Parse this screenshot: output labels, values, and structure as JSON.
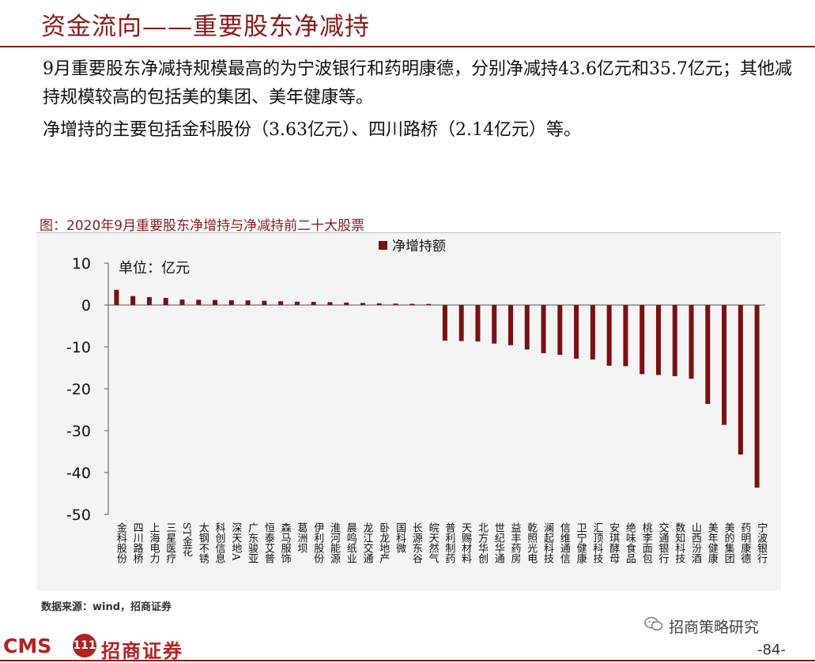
{
  "header": {
    "title": "资金流向——重要股东净减持"
  },
  "summary": {
    "paragraph1": "9月重要股东净减持规模最高的为宁波银行和药明康德，分别净减持43.6亿元和35.7亿元；其他减持规模较高的包括美的集团、美年健康等。",
    "paragraph2": "净增持的主要包括金科股份（3.63亿元）、四川路桥（2.14亿元）等。"
  },
  "figure": {
    "caption": "图：2020年9月重要股东净增持与净减持前二十大股票",
    "source": "数据来源：wind，招商证券"
  },
  "chart_data": {
    "type": "bar",
    "unit_label": "单位：亿元",
    "legend": [
      "净增持额"
    ],
    "legend_position": "top-right",
    "grid": false,
    "ylim": [
      -50,
      10
    ],
    "yticks": [
      10,
      0,
      -10,
      -20,
      -30,
      -40,
      -50
    ],
    "categories": [
      "金科股份",
      "四川路桥",
      "上海电力",
      "三星医疗",
      "ST金花",
      "太钢不锈",
      "科创信息",
      "深天地A",
      "广东骏亚",
      "恒泰艾普",
      "森马服饰",
      "葛洲坝",
      "伊利股份",
      "淮河能源",
      "晨鸣纸业",
      "龙江交通",
      "卧龙地产",
      "国科微",
      "长源东谷",
      "皖天然气",
      "普利制药",
      "天赐材料",
      "北方华创",
      "世纪华通",
      "益丰药房",
      "乾照光电",
      "澜起科技",
      "信维通信",
      "卫宁健康",
      "汇顶科技",
      "安琪酵母",
      "绝味食品",
      "桃李面包",
      "交通银行",
      "数知科技",
      "山西汾酒",
      "美年健康",
      "美的集团",
      "药明康德",
      "宁波银行"
    ],
    "series": [
      {
        "name": "净增持额",
        "color": "#7b0f12",
        "values": [
          3.63,
          2.14,
          1.9,
          1.7,
          1.3,
          1.25,
          1.2,
          1.15,
          1.1,
          1.0,
          0.9,
          0.8,
          0.75,
          0.7,
          0.6,
          0.5,
          0.4,
          0.35,
          0.3,
          0.25,
          -8.5,
          -8.6,
          -8.7,
          -9.2,
          -9.6,
          -10.6,
          -11.5,
          -11.9,
          -12.8,
          -13.0,
          -14.5,
          -14.6,
          -16.5,
          -16.7,
          -17.0,
          -17.6,
          -23.6,
          -28.6,
          -35.7,
          -43.6
        ]
      }
    ]
  },
  "branding": {
    "logo_text": "CMS",
    "logo_emblem": "111",
    "logo_cn": "招商证券",
    "wechat_label": "招商策略研究",
    "page_number": "-84-",
    "accent_color": "#8b1a1a"
  }
}
